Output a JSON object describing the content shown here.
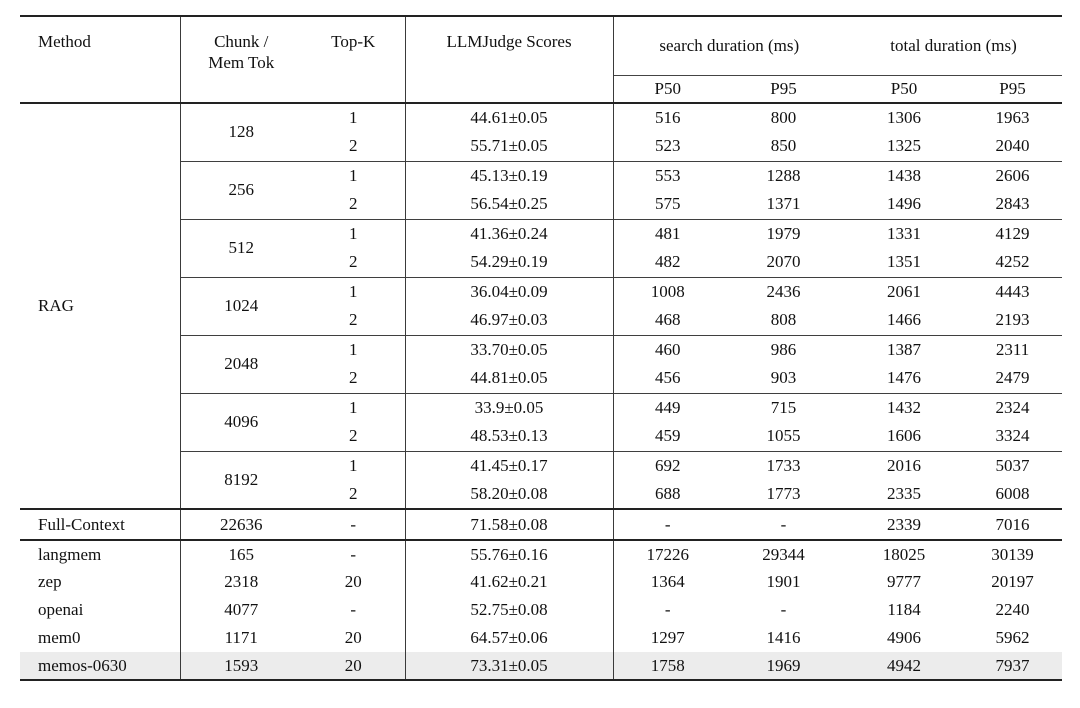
{
  "page": {
    "background": "#ffffff"
  },
  "table": {
    "styles": {
      "highlight_row_color": "#ececec",
      "rule_color_thick": "#222222",
      "rule_color_thin": "#3f3f3f",
      "text_color": "#111111"
    },
    "header": {
      "method": "Method",
      "chunk_line1": "Chunk /",
      "chunk_line2": "Mem Tok",
      "topk": "Top-K",
      "llmjudge": "LLMJudge Scores",
      "search_group": "search duration (ms)",
      "total_group": "total duration (ms)",
      "search_p50": "P50",
      "search_p95": "P95",
      "total_p50": "P50",
      "total_p95": "P95"
    },
    "rag_section": {
      "method": "RAG",
      "groups": [
        {
          "chunk": "128",
          "rows": [
            {
              "topk": "1",
              "score": "44.61±0.05",
              "sp50": "516",
              "sp95": "800",
              "tp50": "1306",
              "tp95": "1963"
            },
            {
              "topk": "2",
              "score": "55.71±0.05",
              "sp50": "523",
              "sp95": "850",
              "tp50": "1325",
              "tp95": "2040"
            }
          ]
        },
        {
          "chunk": "256",
          "rows": [
            {
              "topk": "1",
              "score": "45.13±0.19",
              "sp50": "553",
              "sp95": "1288",
              "tp50": "1438",
              "tp95": "2606"
            },
            {
              "topk": "2",
              "score": "56.54±0.25",
              "sp50": "575",
              "sp95": "1371",
              "tp50": "1496",
              "tp95": "2843"
            }
          ]
        },
        {
          "chunk": "512",
          "rows": [
            {
              "topk": "1",
              "score": "41.36±0.24",
              "sp50": "481",
              "sp95": "1979",
              "tp50": "1331",
              "tp95": "4129"
            },
            {
              "topk": "2",
              "score": "54.29±0.19",
              "sp50": "482",
              "sp95": "2070",
              "tp50": "1351",
              "tp95": "4252"
            }
          ]
        },
        {
          "chunk": "1024",
          "rows": [
            {
              "topk": "1",
              "score": "36.04±0.09",
              "sp50": "1008",
              "sp95": "2436",
              "tp50": "2061",
              "tp95": "4443"
            },
            {
              "topk": "2",
              "score": "46.97±0.03",
              "sp50": "468",
              "sp95": "808",
              "tp50": "1466",
              "tp95": "2193"
            }
          ]
        },
        {
          "chunk": "2048",
          "rows": [
            {
              "topk": "1",
              "score": "33.70±0.05",
              "sp50": "460",
              "sp95": "986",
              "tp50": "1387",
              "tp95": "2311"
            },
            {
              "topk": "2",
              "score": "44.81±0.05",
              "sp50": "456",
              "sp95": "903",
              "tp50": "1476",
              "tp95": "2479"
            }
          ]
        },
        {
          "chunk": "4096",
          "rows": [
            {
              "topk": "1",
              "score": "33.9±0.05",
              "sp50": "449",
              "sp95": "715",
              "tp50": "1432",
              "tp95": "2324"
            },
            {
              "topk": "2",
              "score": "48.53±0.13",
              "sp50": "459",
              "sp95": "1055",
              "tp50": "1606",
              "tp95": "3324"
            }
          ]
        },
        {
          "chunk": "8192",
          "rows": [
            {
              "topk": "1",
              "score": "41.45±0.17",
              "sp50": "692",
              "sp95": "1733",
              "tp50": "2016",
              "tp95": "5037"
            },
            {
              "topk": "2",
              "score": "58.20±0.08",
              "sp50": "688",
              "sp95": "1773",
              "tp50": "2335",
              "tp95": "6008"
            }
          ]
        }
      ]
    },
    "full_context_row": {
      "method": "Full-Context",
      "chunk": "22636",
      "topk": "-",
      "score": "71.58±0.08",
      "sp50": "-",
      "sp95": "-",
      "tp50": "2339",
      "tp95": "7016",
      "highlight": false
    },
    "memory_rows": [
      {
        "method": "langmem",
        "chunk": "165",
        "topk": "-",
        "score": "55.76±0.16",
        "sp50": "17226",
        "sp95": "29344",
        "tp50": "18025",
        "tp95": "30139",
        "highlight": false
      },
      {
        "method": "zep",
        "chunk": "2318",
        "topk": "20",
        "score": "41.62±0.21",
        "sp50": "1364",
        "sp95": "1901",
        "tp50": "9777",
        "tp95": "20197",
        "highlight": false
      },
      {
        "method": "openai",
        "chunk": "4077",
        "topk": "-",
        "score": "52.75±0.08",
        "sp50": "-",
        "sp95": "-",
        "tp50": "1184",
        "tp95": "2240",
        "highlight": false
      },
      {
        "method": "mem0",
        "chunk": "1171",
        "topk": "20",
        "score": "64.57±0.06",
        "sp50": "1297",
        "sp95": "1416",
        "tp50": "4906",
        "tp95": "5962",
        "highlight": false
      },
      {
        "method": "memos-0630",
        "chunk": "1593",
        "topk": "20",
        "score": "73.31±0.05",
        "sp50": "1758",
        "sp95": "1969",
        "tp50": "4942",
        "tp95": "7937",
        "highlight": true
      }
    ]
  }
}
